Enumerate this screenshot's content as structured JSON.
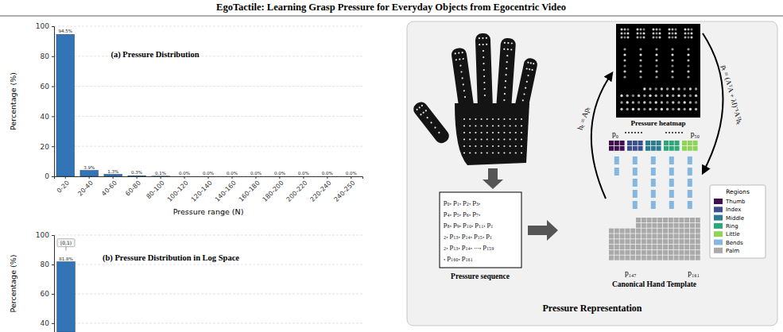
{
  "title": "EgoTactile: Learning Grasp Pressure for Everyday Objects from Egocentric Video",
  "chart_data": [
    {
      "type": "bar",
      "title": "(a) Pressure Distribution",
      "x_label": "Pressure range (N)",
      "y_label": "Percentage (%)",
      "categories": [
        "0-20",
        "20-40",
        "40-60",
        "60-80",
        "80-100",
        "100-120",
        "120-140",
        "140-160",
        "160-180",
        "180-200",
        "200-220",
        "220-240",
        "240-250"
      ],
      "values": [
        94.5,
        3.9,
        1.3,
        0.3,
        0.1,
        0.0,
        0.0,
        0.0,
        0.0,
        0.0,
        0.0,
        0.0,
        0.0
      ],
      "value_labels": [
        "94.5%",
        "3.9%",
        "1.3%",
        "0.3%",
        "0.1%",
        "0.0%",
        "0.0%",
        "0.0%",
        "0.0%",
        "0.0%",
        "0.0%",
        "0.0%",
        "0.0%"
      ],
      "data_labels": true,
      "color": "#3274b5",
      "ylim": [
        0,
        100
      ],
      "yticks": [
        0,
        20,
        40,
        60,
        80,
        100
      ],
      "grid": true
    },
    {
      "type": "bar",
      "title": "(b) Pressure Distribution in Log Space",
      "y_label": "Percentage (%)",
      "categories": [
        null
      ],
      "values": [
        81.8
      ],
      "value_labels": [
        "81.8%"
      ],
      "annotation": "[0,1)",
      "data_labels": true,
      "color": "#3274b5",
      "ylim": [
        34,
        100
      ],
      "yticks": [
        40,
        60,
        80,
        100
      ],
      "grid": true,
      "tick_labels": "y"
    }
  ],
  "diagram": {
    "title": "Pressure Representation",
    "sequence": {
      "lines": [
        "p₀, p₁, p₂, p₃,",
        "p₄, p₅, p₆, p₇,",
        "p₈, p₉, p₁₀, p₁₁, p₁",
        "₂, p₁₃, p₁₄, p₁₅, p₁",
        "₂, p₁₃, p₁₄, ..., p₁₅₉",
        ", p₁₆₀, p₁₆₁"
      ],
      "label": "Pressure sequence"
    },
    "heatmap": {
      "label": "Pressure heatmap"
    },
    "template": {
      "label": "Canonical Hand Template",
      "index_labels": [
        "p₀",
        "p₅₀",
        "p₁₄₇",
        "p₁₆₁"
      ],
      "legend_title": "Regions",
      "regions": [
        {
          "name": "Thumb",
          "color": "#3f0f50"
        },
        {
          "name": "Index",
          "color": "#3a4f8c"
        },
        {
          "name": "Middle",
          "color": "#2b7c8e"
        },
        {
          "name": "Ring",
          "color": "#2fa77a"
        },
        {
          "name": "Little",
          "color": "#8fd455"
        },
        {
          "name": "Bends",
          "color": "#86b8df"
        },
        {
          "name": "Palm",
          "color": "#aaaaaa"
        }
      ]
    },
    "forward_equation": "hₜ = Apₜ",
    "inverse_equation": "pₜ = (AᵀA + λI)⁻¹Aᵀhₜ"
  }
}
